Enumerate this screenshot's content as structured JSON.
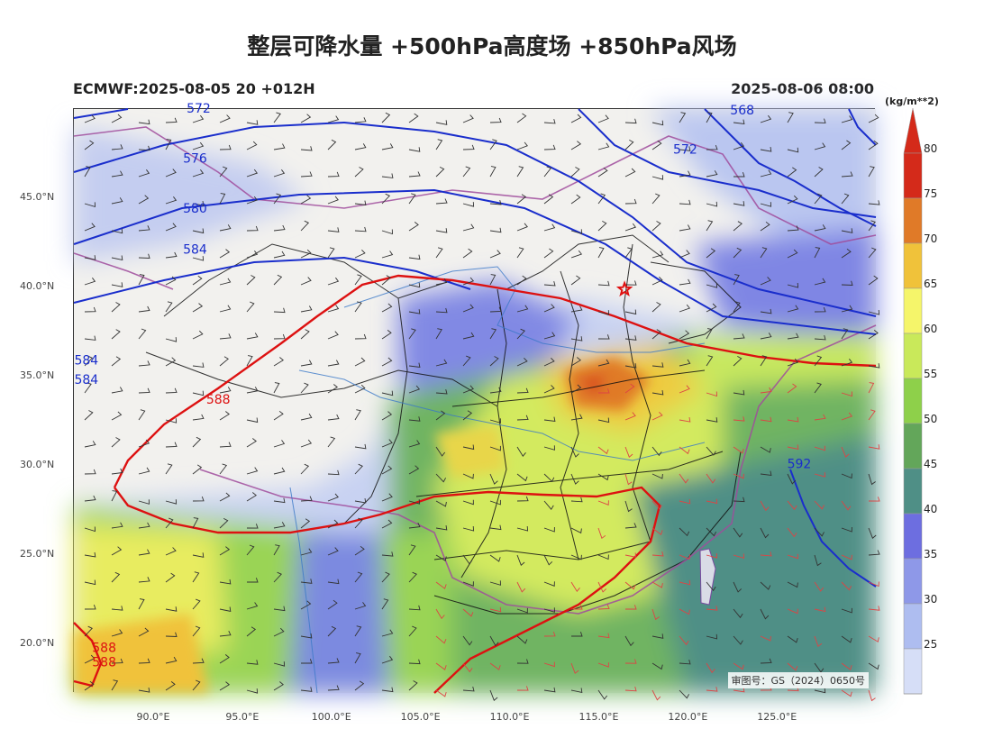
{
  "title": "整层可降水量 +500hPa高度场 +850hPa风场",
  "subtitle_left": "ECMWF:2025-08-05 20 +012H",
  "subtitle_right": "2025-08-06 08:00",
  "map": {
    "lon_range": [
      85.5,
      130.5
    ],
    "lat_range": [
      17.3,
      50.0
    ],
    "lat_ticks": [
      {
        "value": 45,
        "label": "45.0°N"
      },
      {
        "value": 40,
        "label": "40.0°N"
      },
      {
        "value": 35,
        "label": "35.0°N"
      },
      {
        "value": 30,
        "label": "30.0°N"
      },
      {
        "value": 25,
        "label": "25.0°N"
      },
      {
        "value": 20,
        "label": "20.0°N"
      }
    ],
    "lon_ticks": [
      {
        "value": 90,
        "label": "90.0°E"
      },
      {
        "value": 95,
        "label": "95.0°E"
      },
      {
        "value": 100,
        "label": "100.0°E"
      },
      {
        "value": 105,
        "label": "105.0°E"
      },
      {
        "value": 110,
        "label": "110.0°E"
      },
      {
        "value": 115,
        "label": "115.0°E"
      },
      {
        "value": 120,
        "label": "120.0°E"
      },
      {
        "value": 125,
        "label": "125.0°E"
      }
    ],
    "contour_labels": [
      {
        "text": "572",
        "lon": 92.5,
        "lat": 49.8,
        "color": "#1a2ecc"
      },
      {
        "text": "576",
        "lon": 92.3,
        "lat": 47.0,
        "color": "#1a2ecc"
      },
      {
        "text": "580",
        "lon": 92.3,
        "lat": 44.2,
        "color": "#1a2ecc"
      },
      {
        "text": "584",
        "lon": 92.3,
        "lat": 41.9,
        "color": "#1a2ecc"
      },
      {
        "text": "568",
        "lon": 123.0,
        "lat": 49.7,
        "color": "#1a2ecc"
      },
      {
        "text": "572",
        "lon": 119.8,
        "lat": 47.5,
        "color": "#1a2ecc"
      },
      {
        "text": "584",
        "lon": 86.2,
        "lat": 35.7,
        "color": "#1a2ecc"
      },
      {
        "text": "584",
        "lon": 86.2,
        "lat": 34.6,
        "color": "#1a2ecc"
      },
      {
        "text": "592",
        "lon": 126.2,
        "lat": 29.9,
        "color": "#1a2ecc"
      },
      {
        "text": "588",
        "lon": 93.6,
        "lat": 33.5,
        "color": "#dd1111"
      },
      {
        "text": "588",
        "lon": 87.2,
        "lat": 19.6,
        "color": "#dd1111"
      },
      {
        "text": "588",
        "lon": 87.2,
        "lat": 18.8,
        "color": "#dd1111"
      }
    ],
    "star_marker": {
      "lon": 116.4,
      "lat": 39.9,
      "color": "#e01010"
    },
    "approval_stamp": "审图号：GS（2024）0650号"
  },
  "legend": {
    "unit": "(kg/m**2)",
    "levels": [
      25,
      30,
      35,
      40,
      45,
      50,
      55,
      60,
      65,
      70,
      75,
      80
    ],
    "colors": [
      "#d6def7",
      "#aebdf0",
      "#8e98e8",
      "#6d6ee0",
      "#4f8f86",
      "#63a65a",
      "#8ed04a",
      "#c9e95a",
      "#f5f56a",
      "#f0c23a",
      "#e07a28",
      "#d42a1a"
    ]
  }
}
